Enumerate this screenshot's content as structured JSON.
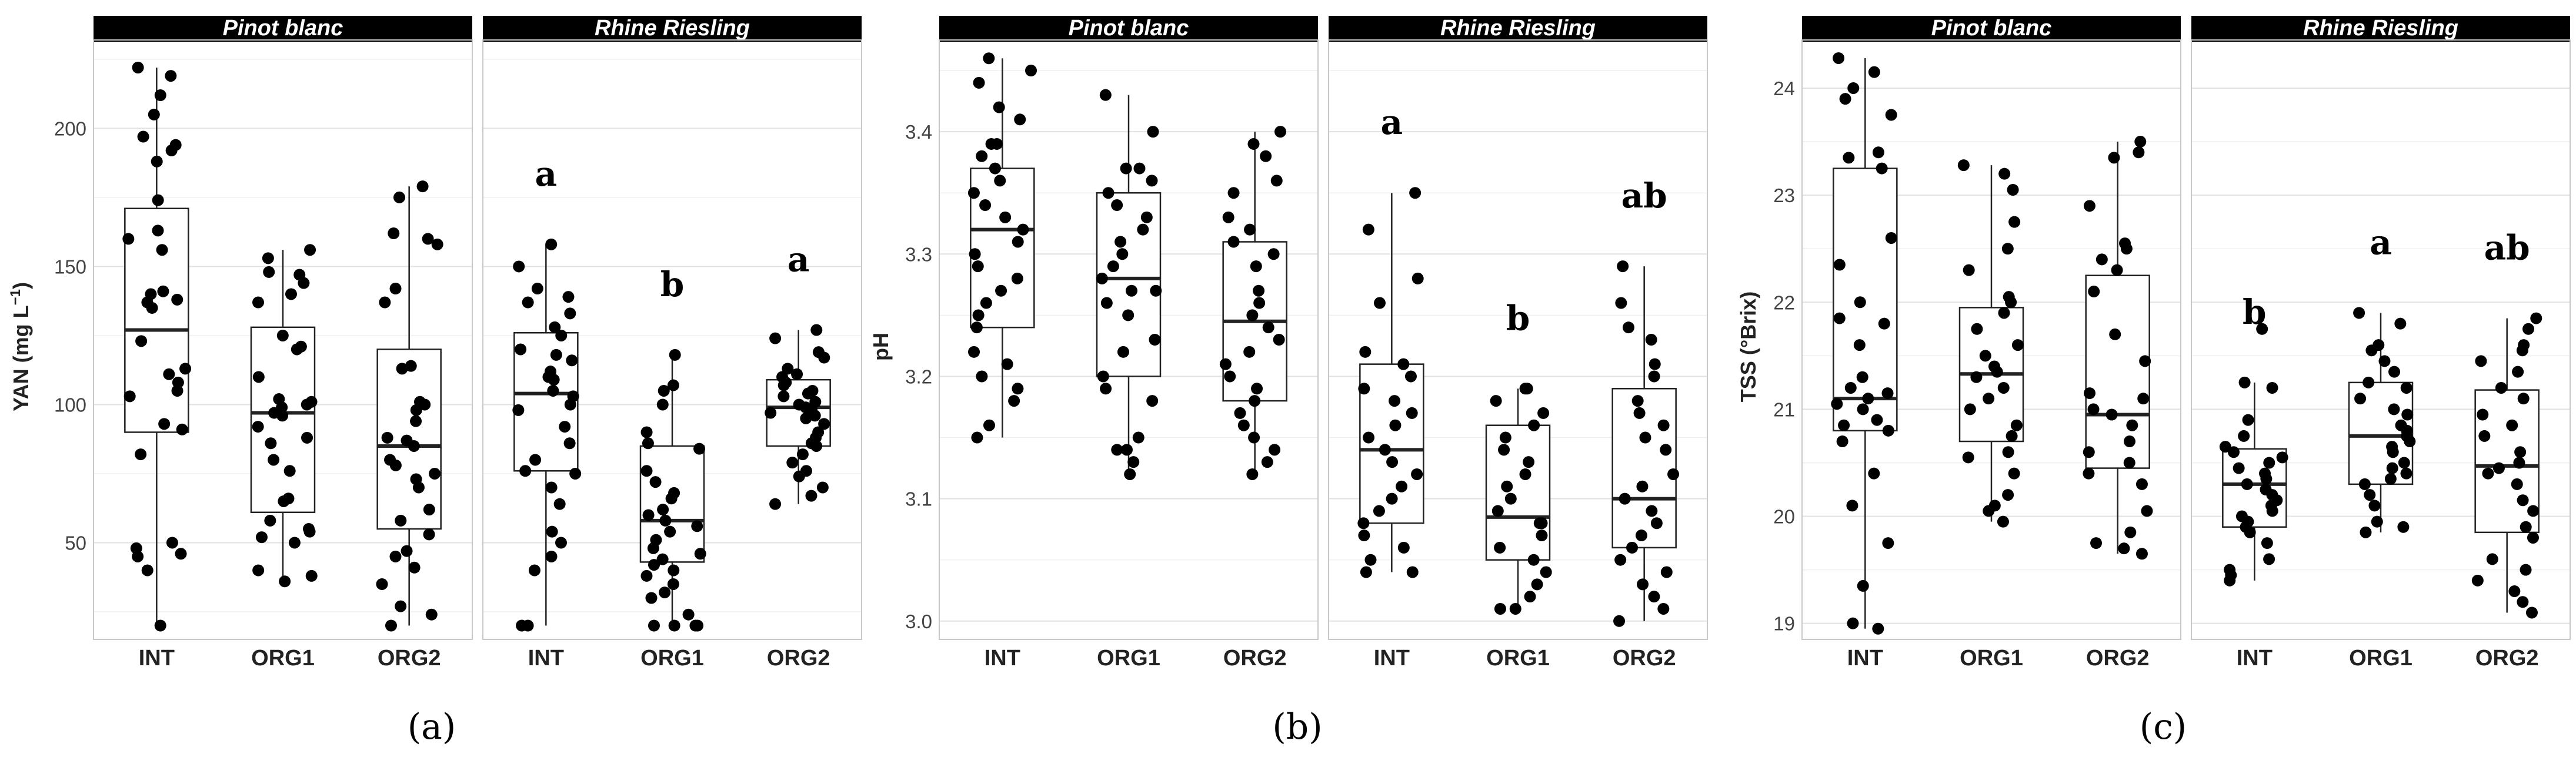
{
  "chart_data": [
    {
      "type": "box",
      "panel_label": "(a)",
      "ylabel": "YAN (mg L",
      "ylabel_superscript": "−1",
      "ylabel_close": ")",
      "ylim": [
        15,
        232
      ],
      "yticks": [
        50,
        100,
        150,
        200
      ],
      "categories": [
        "INT",
        "ORG1",
        "ORG2"
      ],
      "facets": [
        {
          "title": "Pinot blanc",
          "groups": [
            {
              "category": "INT",
              "whisker_low": 20,
              "q1": 90,
              "median": 127,
              "q3": 171,
              "whisker_high": 222,
              "letter": "",
              "points": [
                222,
                219,
                212,
                205,
                197,
                194,
                192,
                188,
                174,
                163,
                160,
                156,
                141,
                140,
                138,
                137,
                135,
                123,
                113,
                111,
                108,
                105,
                103,
                93,
                91,
                82,
                50,
                48,
                46,
                45,
                40,
                20
              ]
            },
            {
              "category": "ORG1",
              "whisker_low": 36,
              "q1": 61,
              "median": 97,
              "q3": 128,
              "whisker_high": 156,
              "letter": "",
              "points": [
                156,
                153,
                148,
                147,
                144,
                140,
                137,
                125,
                121,
                120,
                110,
                102,
                101,
                100,
                99,
                97,
                96,
                92,
                88,
                86,
                80,
                76,
                66,
                65,
                58,
                55,
                54,
                52,
                50,
                40,
                38,
                36
              ]
            },
            {
              "category": "ORG2",
              "whisker_low": 20,
              "q1": 55,
              "median": 85,
              "q3": 120,
              "whisker_high": 179,
              "letter": "",
              "points": [
                179,
                175,
                162,
                160,
                158,
                142,
                137,
                114,
                113,
                101,
                100,
                98,
                94,
                88,
                87,
                85,
                80,
                78,
                75,
                73,
                70,
                62,
                58,
                53,
                47,
                45,
                41,
                35,
                27,
                24,
                20
              ]
            }
          ]
        },
        {
          "title": "Rhine Riesling",
          "groups": [
            {
              "category": "INT",
              "whisker_low": 20,
              "q1": 76,
              "median": 104,
              "q3": 126,
              "whisker_high": 158,
              "letter": "a",
              "points": [
                158,
                150,
                142,
                139,
                137,
                133,
                128,
                125,
                120,
                118,
                116,
                112,
                110,
                109,
                105,
                103,
                100,
                98,
                92,
                86,
                80,
                76,
                75,
                70,
                64,
                54,
                50,
                45,
                40,
                20,
                20
              ]
            },
            {
              "category": "ORG1",
              "whisker_low": 20,
              "q1": 43,
              "median": 58,
              "q3": 85,
              "whisker_high": 118,
              "letter": "b",
              "points": [
                118,
                107,
                105,
                100,
                90,
                86,
                84,
                76,
                72,
                68,
                66,
                62,
                60,
                58,
                56,
                54,
                51,
                48,
                46,
                44,
                42,
                40,
                38,
                35,
                32,
                30,
                24,
                20,
                20,
                20,
                20
              ]
            },
            {
              "category": "ORG2",
              "whisker_low": 64,
              "q1": 85,
              "median": 99,
              "q3": 109,
              "whisker_high": 127,
              "letter": "a",
              "points": [
                127,
                124,
                119,
                117,
                113,
                111,
                110,
                108,
                107,
                105,
                104,
                103,
                101,
                100,
                99,
                98,
                97,
                96,
                95,
                93,
                90,
                88,
                86,
                85,
                82,
                79,
                76,
                74,
                70,
                67,
                64
              ]
            }
          ]
        }
      ]
    },
    {
      "type": "box",
      "panel_label": "(b)",
      "ylabel": "pH",
      "ylabel_superscript": "",
      "ylabel_close": "",
      "ylim": [
        2.985,
        3.475
      ],
      "yticks": [
        3.0,
        3.1,
        3.2,
        3.3,
        3.4
      ],
      "categories": [
        "INT",
        "ORG1",
        "ORG2"
      ],
      "facets": [
        {
          "title": "Pinot blanc",
          "groups": [
            {
              "category": "INT",
              "whisker_low": 3.15,
              "q1": 3.24,
              "median": 3.32,
              "q3": 3.37,
              "whisker_high": 3.46,
              "letter": "",
              "points": [
                3.46,
                3.45,
                3.44,
                3.42,
                3.41,
                3.39,
                3.39,
                3.38,
                3.37,
                3.36,
                3.35,
                3.34,
                3.33,
                3.32,
                3.31,
                3.3,
                3.29,
                3.28,
                3.27,
                3.26,
                3.25,
                3.24,
                3.22,
                3.21,
                3.2,
                3.19,
                3.18,
                3.16,
                3.15
              ]
            },
            {
              "category": "ORG1",
              "whisker_low": 3.12,
              "q1": 3.2,
              "median": 3.28,
              "q3": 3.35,
              "whisker_high": 3.43,
              "letter": "",
              "points": [
                3.43,
                3.4,
                3.37,
                3.37,
                3.36,
                3.35,
                3.34,
                3.33,
                3.32,
                3.31,
                3.3,
                3.29,
                3.28,
                3.27,
                3.27,
                3.26,
                3.25,
                3.23,
                3.22,
                3.2,
                3.19,
                3.18,
                3.15,
                3.14,
                3.14,
                3.13,
                3.12
              ]
            },
            {
              "category": "ORG2",
              "whisker_low": 3.12,
              "q1": 3.18,
              "median": 3.245,
              "q3": 3.31,
              "whisker_high": 3.4,
              "letter": "",
              "points": [
                3.4,
                3.39,
                3.38,
                3.36,
                3.35,
                3.33,
                3.32,
                3.31,
                3.3,
                3.29,
                3.27,
                3.26,
                3.25,
                3.24,
                3.23,
                3.22,
                3.21,
                3.2,
                3.19,
                3.18,
                3.17,
                3.16,
                3.15,
                3.14,
                3.13,
                3.12
              ]
            }
          ]
        },
        {
          "title": "Rhine Riesling",
          "groups": [
            {
              "category": "INT",
              "whisker_low": 3.04,
              "q1": 3.08,
              "median": 3.14,
              "q3": 3.21,
              "whisker_high": 3.35,
              "letter": "a",
              "points": [
                3.35,
                3.32,
                3.28,
                3.26,
                3.22,
                3.21,
                3.2,
                3.19,
                3.18,
                3.17,
                3.16,
                3.15,
                3.14,
                3.13,
                3.12,
                3.11,
                3.1,
                3.09,
                3.08,
                3.07,
                3.06,
                3.05,
                3.04,
                3.04
              ]
            },
            {
              "category": "ORG1",
              "whisker_low": 3.01,
              "q1": 3.05,
              "median": 3.085,
              "q3": 3.16,
              "whisker_high": 3.19,
              "letter": "b",
              "points": [
                3.19,
                3.19,
                3.18,
                3.17,
                3.16,
                3.15,
                3.14,
                3.13,
                3.12,
                3.11,
                3.1,
                3.09,
                3.08,
                3.08,
                3.07,
                3.06,
                3.05,
                3.04,
                3.03,
                3.02,
                3.01,
                3.01
              ]
            },
            {
              "category": "ORG2",
              "whisker_low": 3.0,
              "q1": 3.06,
              "median": 3.1,
              "q3": 3.19,
              "whisker_high": 3.29,
              "letter": "ab",
              "points": [
                3.29,
                3.26,
                3.24,
                3.23,
                3.21,
                3.2,
                3.18,
                3.17,
                3.16,
                3.15,
                3.14,
                3.12,
                3.11,
                3.1,
                3.09,
                3.08,
                3.07,
                3.06,
                3.05,
                3.04,
                3.03,
                3.02,
                3.01,
                3.0
              ]
            }
          ]
        }
      ]
    },
    {
      "type": "box",
      "panel_label": "(c)",
      "ylabel": "TSS (°Brix)",
      "ylabel_superscript": "",
      "ylabel_close": "",
      "ylim": [
        18.85,
        24.45
      ],
      "yticks": [
        19,
        20,
        21,
        22,
        23,
        24
      ],
      "categories": [
        "INT",
        "ORG1",
        "ORG2"
      ],
      "facets": [
        {
          "title": "Pinot blanc",
          "groups": [
            {
              "category": "INT",
              "whisker_low": 18.95,
              "q1": 20.8,
              "median": 21.1,
              "q3": 23.25,
              "whisker_high": 24.28,
              "letter": "",
              "points": [
                24.28,
                24.15,
                24.0,
                23.9,
                23.75,
                23.4,
                23.35,
                23.25,
                22.6,
                22.35,
                22.0,
                21.85,
                21.8,
                21.6,
                21.3,
                21.2,
                21.15,
                21.1,
                21.05,
                21.0,
                20.9,
                20.85,
                20.8,
                20.7,
                20.4,
                20.1,
                19.75,
                19.35,
                19.0,
                18.95
              ]
            },
            {
              "category": "ORG1",
              "whisker_low": 19.95,
              "q1": 20.7,
              "median": 21.33,
              "q3": 21.95,
              "whisker_high": 23.28,
              "letter": "",
              "points": [
                23.28,
                23.2,
                23.05,
                22.75,
                22.5,
                22.3,
                22.05,
                22.0,
                21.9,
                21.75,
                21.6,
                21.5,
                21.4,
                21.35,
                21.3,
                21.2,
                21.1,
                21.0,
                20.85,
                20.75,
                20.6,
                20.55,
                20.4,
                20.2,
                20.1,
                20.05,
                19.95
              ]
            },
            {
              "category": "ORG2",
              "whisker_low": 19.65,
              "q1": 20.45,
              "median": 20.95,
              "q3": 22.25,
              "whisker_high": 23.5,
              "letter": "",
              "points": [
                23.5,
                23.4,
                23.35,
                22.9,
                22.55,
                22.5,
                22.4,
                22.3,
                22.1,
                21.7,
                21.45,
                21.15,
                21.1,
                21.0,
                20.95,
                20.85,
                20.7,
                20.6,
                20.5,
                20.4,
                20.3,
                20.05,
                19.85,
                19.75,
                19.7,
                19.65
              ]
            }
          ]
        },
        {
          "title": "Rhine Riesling",
          "groups": [
            {
              "category": "INT",
              "whisker_low": 19.4,
              "q1": 19.9,
              "median": 20.3,
              "q3": 20.63,
              "whisker_high": 21.25,
              "letter": "b",
              "points": [
                21.75,
                21.25,
                21.2,
                20.9,
                20.75,
                20.65,
                20.6,
                20.55,
                20.5,
                20.45,
                20.4,
                20.35,
                20.3,
                20.25,
                20.2,
                20.15,
                20.1,
                20.05,
                20.0,
                19.95,
                19.9,
                19.85,
                19.75,
                19.6,
                19.5,
                19.45,
                19.4
              ]
            },
            {
              "category": "ORG1",
              "whisker_low": 19.85,
              "q1": 20.3,
              "median": 20.75,
              "q3": 21.25,
              "whisker_high": 21.9,
              "letter": "a",
              "points": [
                21.9,
                21.8,
                21.6,
                21.55,
                21.45,
                21.35,
                21.25,
                21.2,
                21.1,
                21.0,
                20.95,
                20.85,
                20.8,
                20.75,
                20.7,
                20.65,
                20.6,
                20.5,
                20.45,
                20.4,
                20.35,
                20.3,
                20.2,
                20.1,
                19.95,
                19.9,
                19.85
              ]
            },
            {
              "category": "ORG2",
              "whisker_low": 19.1,
              "q1": 19.85,
              "median": 20.47,
              "q3": 21.18,
              "whisker_high": 21.85,
              "letter": "ab",
              "points": [
                21.85,
                21.75,
                21.6,
                21.55,
                21.45,
                21.35,
                21.2,
                21.1,
                20.95,
                20.85,
                20.75,
                20.6,
                20.5,
                20.45,
                20.4,
                20.3,
                20.15,
                20.05,
                19.9,
                19.8,
                19.6,
                19.5,
                19.4,
                19.3,
                19.2,
                19.1
              ]
            }
          ]
        }
      ]
    }
  ]
}
